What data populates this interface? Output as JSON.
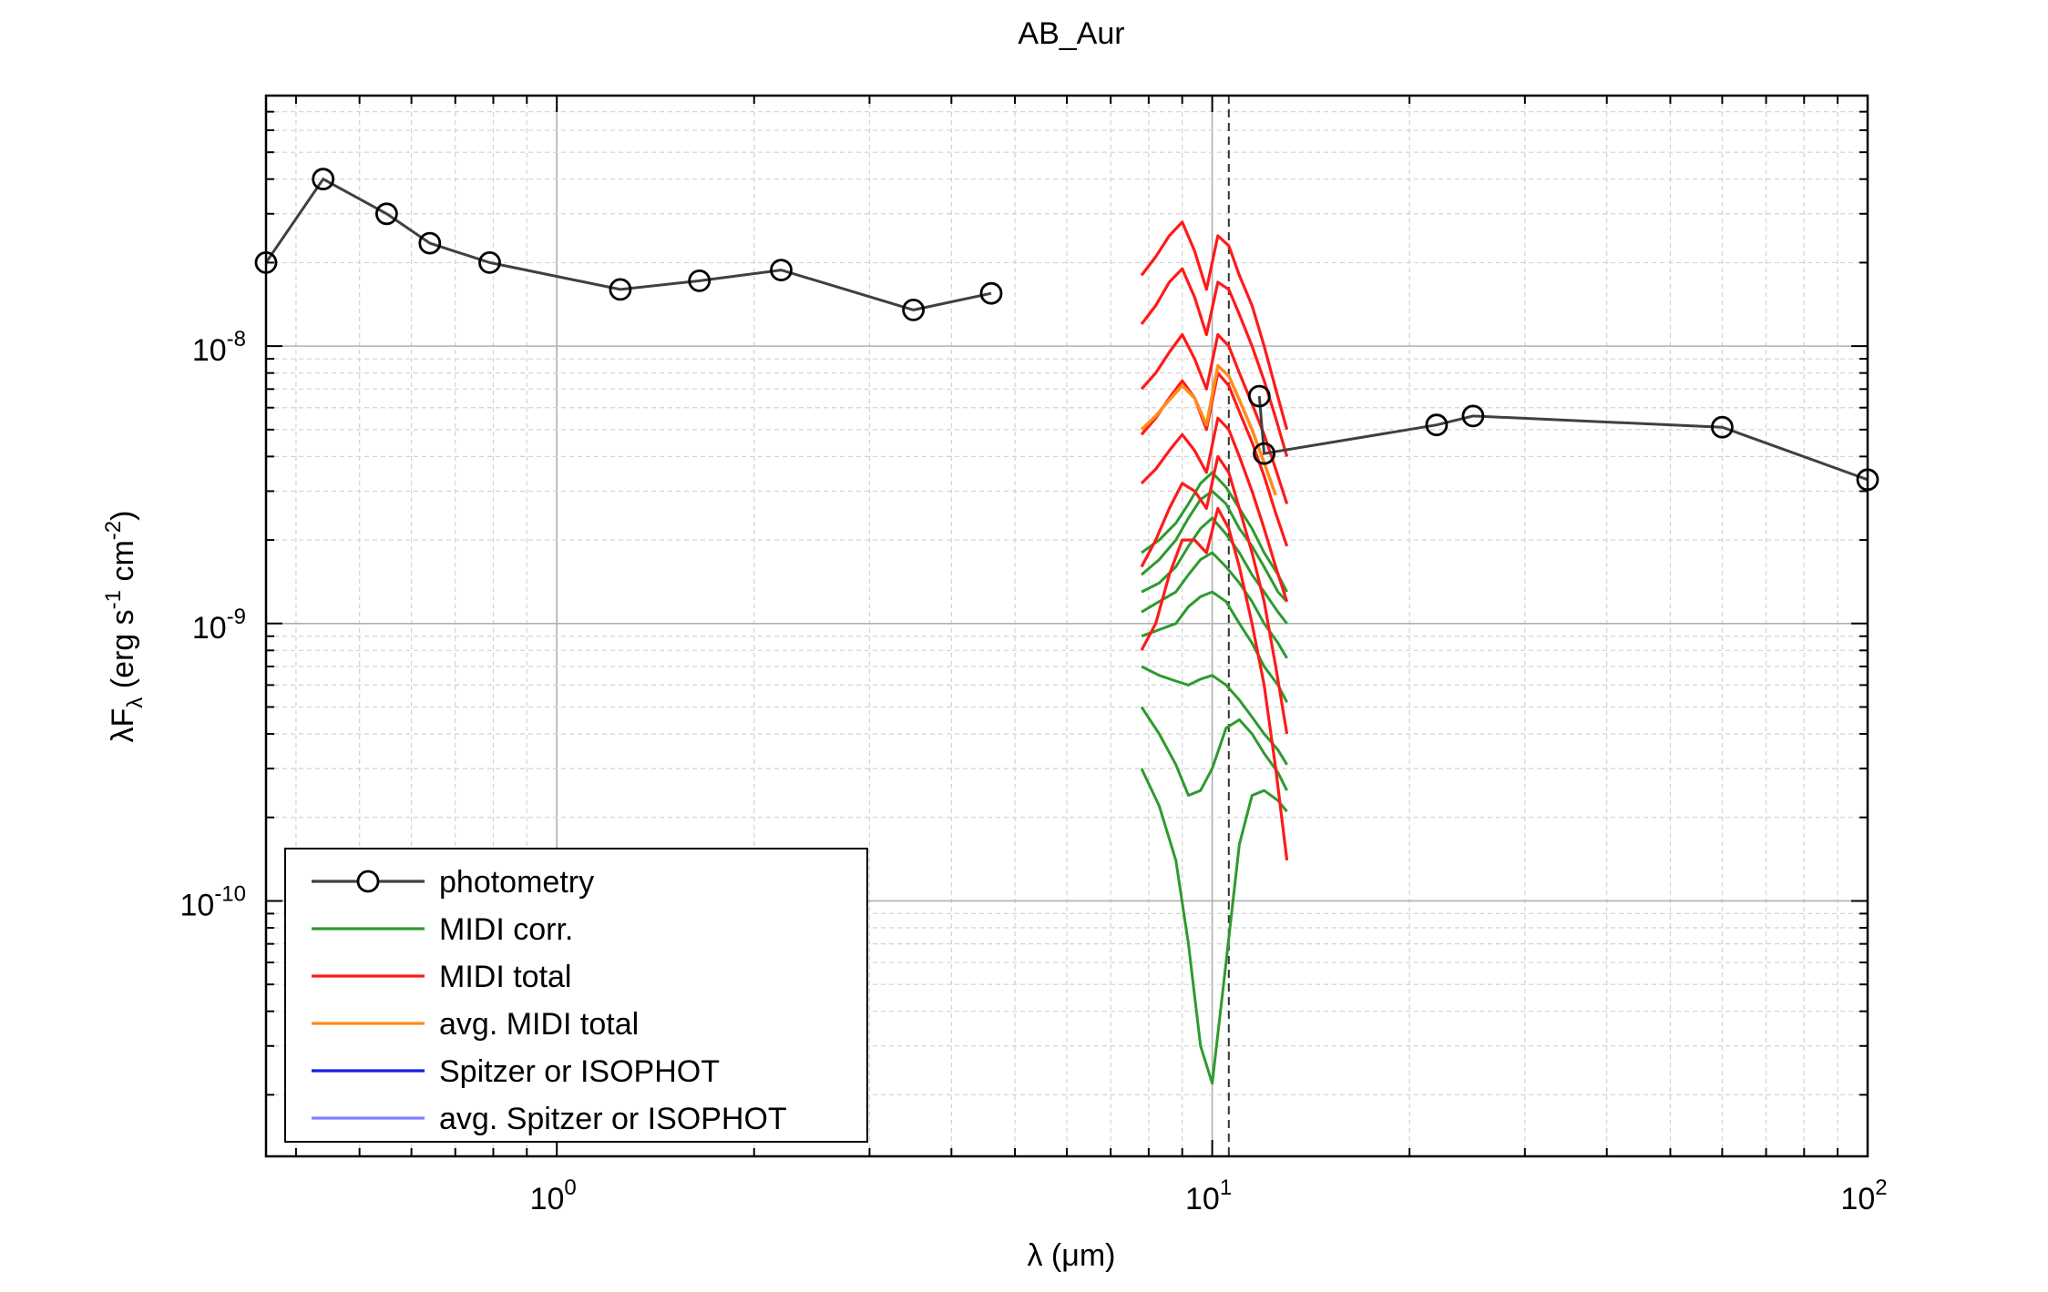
{
  "chart_data": {
    "type": "line",
    "title": "AB_Aur",
    "xlabel": "λ (μm)",
    "ylabel": "λF_λ (erg s^-1 cm^-2)",
    "xscale": "log",
    "yscale": "log",
    "xlim": [
      0.36,
      100
    ],
    "ylim": [
      1.2e-11,
      8e-08
    ],
    "grid": true,
    "xticks": [
      {
        "base": "10",
        "exp": "0",
        "value": 1
      },
      {
        "base": "10",
        "exp": "1",
        "value": 10
      },
      {
        "base": "10",
        "exp": "2",
        "value": 100
      }
    ],
    "yticks": [
      {
        "base": "10",
        "exp": "-10",
        "value": 1e-10
      },
      {
        "base": "10",
        "exp": "-9",
        "value": 1e-09
      },
      {
        "base": "10",
        "exp": "-8",
        "value": 1e-08
      }
    ],
    "vline": 10.6,
    "legend": {
      "position": "bottom-left",
      "entries": [
        {
          "label": "photometry",
          "color": "#404040",
          "marker": "circle"
        },
        {
          "label": "MIDI corr.",
          "color": "#2e9a2e"
        },
        {
          "label": "MIDI total",
          "color": "#ff1a1a"
        },
        {
          "label": "avg. MIDI total",
          "color": "#ff8c1a"
        },
        {
          "label": "Spitzer or ISOPHOT",
          "color": "#1a1ae6"
        },
        {
          "label": "avg. Spitzer or ISOPHOT",
          "color": "#8080ff"
        }
      ]
    },
    "photometry": [
      {
        "x": 0.36,
        "y": 2e-08
      },
      {
        "x": 0.44,
        "y": 4e-08
      },
      {
        "x": 0.55,
        "y": 3e-08
      },
      {
        "x": 0.64,
        "y": 2.35e-08
      },
      {
        "x": 0.79,
        "y": 2e-08
      },
      {
        "x": 1.25,
        "y": 1.6e-08
      },
      {
        "x": 1.65,
        "y": 1.72e-08
      },
      {
        "x": 2.2,
        "y": 1.88e-08
      },
      {
        "x": 3.5,
        "y": 1.35e-08
      },
      {
        "x": 4.6,
        "y": 1.55e-08
      },
      {
        "x": 11.8,
        "y": 6.6e-09
      },
      {
        "x": 12.0,
        "y": 4.1e-09
      },
      {
        "x": 22,
        "y": 5.2e-09
      },
      {
        "x": 25,
        "y": 5.6e-09
      },
      {
        "x": 60,
        "y": 5.1e-09
      },
      {
        "x": 100,
        "y": 3.3e-09
      }
    ],
    "midi_corr": [
      {
        "x": [
          7.8,
          8.3,
          8.8,
          9.2,
          9.6,
          10.0,
          10.5,
          11.0,
          11.5,
          12.0,
          12.6,
          13.0
        ],
        "y": [
          1.8e-09,
          2e-09,
          2.3e-09,
          2.7e-09,
          3.2e-09,
          3.5e-09,
          3.1e-09,
          2.6e-09,
          2.2e-09,
          1.8e-09,
          1.5e-09,
          1.3e-09
        ]
      },
      {
        "x": [
          7.8,
          8.3,
          8.8,
          9.2,
          9.6,
          10.0,
          10.5,
          11.0,
          11.5,
          12.0,
          12.6,
          13.0
        ],
        "y": [
          1.5e-09,
          1.7e-09,
          2e-09,
          2.4e-09,
          2.8e-09,
          3e-09,
          2.7e-09,
          2.2e-09,
          1.9e-09,
          1.6e-09,
          1.3e-09,
          1.2e-09
        ]
      },
      {
        "x": [
          7.8,
          8.3,
          8.8,
          9.2,
          9.6,
          10.0,
          10.5,
          11.0,
          11.5,
          12.0,
          12.6,
          13.0
        ],
        "y": [
          1.3e-09,
          1.4e-09,
          1.6e-09,
          1.9e-09,
          2.2e-09,
          2.4e-09,
          2.1e-09,
          1.8e-09,
          1.5e-09,
          1.3e-09,
          1.1e-09,
          1e-09
        ]
      },
      {
        "x": [
          7.8,
          8.3,
          8.8,
          9.2,
          9.6,
          10.0,
          10.5,
          11.0,
          11.5,
          12.0,
          12.6,
          13.0
        ],
        "y": [
          1.1e-09,
          1.2e-09,
          1.3e-09,
          1.5e-09,
          1.7e-09,
          1.8e-09,
          1.6e-09,
          1.4e-09,
          1.2e-09,
          1e-09,
          8.5e-10,
          7.5e-10
        ]
      },
      {
        "x": [
          7.8,
          8.3,
          8.8,
          9.2,
          9.6,
          10.0,
          10.5,
          11.0,
          11.5,
          12.0,
          12.6,
          13.0
        ],
        "y": [
          9e-10,
          9.5e-10,
          1e-09,
          1.15e-09,
          1.25e-09,
          1.3e-09,
          1.2e-09,
          1e-09,
          8.5e-10,
          7e-10,
          6e-10,
          5.2e-10
        ]
      },
      {
        "x": [
          7.8,
          8.3,
          8.8,
          9.2,
          9.6,
          10.0,
          10.5,
          11.0,
          11.5,
          12.0,
          12.6,
          13.0
        ],
        "y": [
          7e-10,
          6.5e-10,
          6.2e-10,
          6e-10,
          6.3e-10,
          6.5e-10,
          6e-10,
          5.3e-10,
          4.6e-10,
          4e-10,
          3.5e-10,
          3.1e-10
        ]
      },
      {
        "x": [
          7.8,
          8.3,
          8.8,
          9.2,
          9.6,
          10.0,
          10.5,
          11.0,
          11.5,
          12.0,
          12.6,
          13.0
        ],
        "y": [
          5e-10,
          4e-10,
          3.1e-10,
          2.4e-10,
          2.5e-10,
          3e-10,
          4.2e-10,
          4.5e-10,
          4e-10,
          3.4e-10,
          2.9e-10,
          2.5e-10
        ]
      },
      {
        "x": [
          7.8,
          8.3,
          8.8,
          9.2,
          9.6,
          10.0,
          10.5,
          11.0,
          11.5,
          12.0,
          12.6,
          13.0
        ],
        "y": [
          3e-10,
          2.2e-10,
          1.4e-10,
          7e-11,
          3e-11,
          2.2e-11,
          6e-11,
          1.6e-10,
          2.4e-10,
          2.5e-10,
          2.3e-10,
          2.1e-10
        ]
      }
    ],
    "midi_total": [
      {
        "x": [
          7.8,
          8.2,
          8.6,
          9.0,
          9.4,
          9.8,
          10.2,
          10.6,
          11.0,
          11.5,
          12.0,
          12.5,
          13.0
        ],
        "y": [
          1.8e-08,
          2.1e-08,
          2.5e-08,
          2.8e-08,
          2.2e-08,
          1.6e-08,
          2.5e-08,
          2.3e-08,
          1.8e-08,
          1.4e-08,
          1e-08,
          7e-09,
          5e-09
        ]
      },
      {
        "x": [
          7.8,
          8.2,
          8.6,
          9.0,
          9.4,
          9.8,
          10.2,
          10.6,
          11.0,
          11.5,
          12.0,
          12.5,
          13.0
        ],
        "y": [
          1.2e-08,
          1.4e-08,
          1.7e-08,
          1.9e-08,
          1.5e-08,
          1.1e-08,
          1.7e-08,
          1.6e-08,
          1.3e-08,
          1e-08,
          7.5e-09,
          5.5e-09,
          4e-09
        ]
      },
      {
        "x": [
          7.8,
          8.2,
          8.6,
          9.0,
          9.4,
          9.8,
          10.2,
          10.6,
          11.0,
          11.5,
          12.0,
          12.5,
          13.0
        ],
        "y": [
          7e-09,
          8e-09,
          9.5e-09,
          1.1e-08,
          9e-09,
          7e-09,
          1.1e-08,
          1e-08,
          8e-09,
          6.2e-09,
          4.8e-09,
          3.6e-09,
          2.7e-09
        ]
      },
      {
        "x": [
          7.8,
          8.2,
          8.6,
          9.0,
          9.4,
          9.8,
          10.2,
          10.6,
          11.0,
          11.5,
          12.0,
          12.5,
          13.0
        ],
        "y": [
          4.8e-09,
          5.5e-09,
          6.5e-09,
          7.5e-09,
          6.5e-09,
          5e-09,
          8e-09,
          7.2e-09,
          5.8e-09,
          4.5e-09,
          3.4e-09,
          2.5e-09,
          1.9e-09
        ]
      },
      {
        "x": [
          7.8,
          8.2,
          8.6,
          9.0,
          9.4,
          9.8,
          10.2,
          10.6,
          11.0,
          11.5,
          12.0,
          12.5,
          13.0
        ],
        "y": [
          3.2e-09,
          3.6e-09,
          4.2e-09,
          4.8e-09,
          4.2e-09,
          3.5e-09,
          5.5e-09,
          5e-09,
          4e-09,
          3e-09,
          2.2e-09,
          1.6e-09,
          1.2e-09
        ]
      },
      {
        "x": [
          7.8,
          8.2,
          8.6,
          9.0,
          9.4,
          9.8,
          10.2,
          10.6,
          11.0,
          11.5,
          12.0,
          12.5,
          13.0
        ],
        "y": [
          1.6e-09,
          2e-09,
          2.6e-09,
          3.2e-09,
          3e-09,
          2.6e-09,
          4e-09,
          3.5e-09,
          2.6e-09,
          1.8e-09,
          1.2e-09,
          7e-10,
          4e-10
        ]
      },
      {
        "x": [
          7.8,
          8.2,
          8.6,
          9.0,
          9.4,
          9.8,
          10.2,
          10.6,
          11.0,
          11.5,
          12.0,
          12.5,
          13.0
        ],
        "y": [
          8e-10,
          1e-09,
          1.5e-09,
          2e-09,
          2e-09,
          1.8e-09,
          2.6e-09,
          2.2e-09,
          1.6e-09,
          1e-09,
          6e-10,
          3e-10,
          1.4e-10
        ]
      }
    ],
    "avg_midi_total": [
      {
        "x": [
          7.8,
          8.2,
          8.6,
          9.0,
          9.4,
          9.8,
          10.2,
          10.6,
          11.0,
          11.5,
          12.0,
          12.5
        ],
        "y": [
          5e-09,
          5.6e-09,
          6.4e-09,
          7.2e-09,
          6.5e-09,
          5.2e-09,
          8.5e-09,
          7.8e-09,
          6.4e-09,
          5e-09,
          3.8e-09,
          2.9e-09
        ]
      }
    ]
  }
}
